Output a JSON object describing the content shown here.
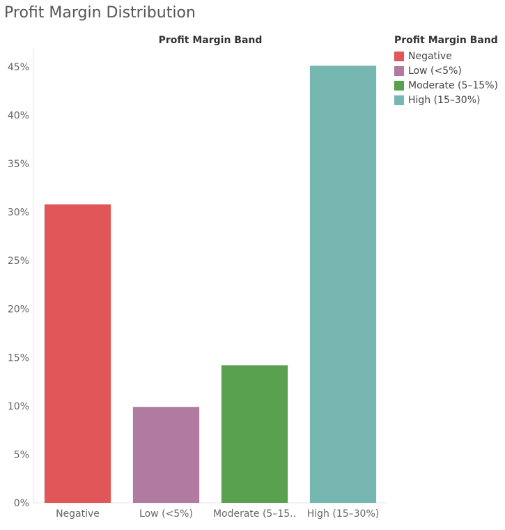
{
  "title": "Profit Margin Distribution",
  "colors": {
    "Negative": "#e15759",
    "Low (<5%)": "#b07aa1",
    "Moderate (5–15%)": "#59a14f",
    "High (15–30%)": "#76b7b2"
  },
  "legend": {
    "title": "Profit Margin Band",
    "items": [
      "Negative",
      "Low (<5%)",
      "Moderate (5–15%)",
      "High (15–30%)"
    ]
  },
  "chart_data": {
    "type": "bar",
    "title": "Profit Margin Band",
    "categories": [
      "Negative",
      "Low (<5%)",
      "Moderate (5–15%)",
      "High (15–30%)"
    ],
    "category_tick_labels": [
      "Negative",
      "Low (<5%)",
      "Moderate (5–15..",
      "High (15–30%)"
    ],
    "values": [
      30.8,
      9.9,
      14.2,
      45.1
    ],
    "value_unit": "%",
    "ylim": [
      0,
      47
    ],
    "yticks": [
      0,
      5,
      10,
      15,
      20,
      25,
      30,
      35,
      40,
      45
    ],
    "ytick_labels": [
      "0%",
      "5%",
      "10%",
      "15%",
      "20%",
      "25%",
      "30%",
      "35%",
      "40%",
      "45%"
    ],
    "xlabel": "",
    "ylabel": "",
    "grid": false,
    "legend_position": "right"
  }
}
